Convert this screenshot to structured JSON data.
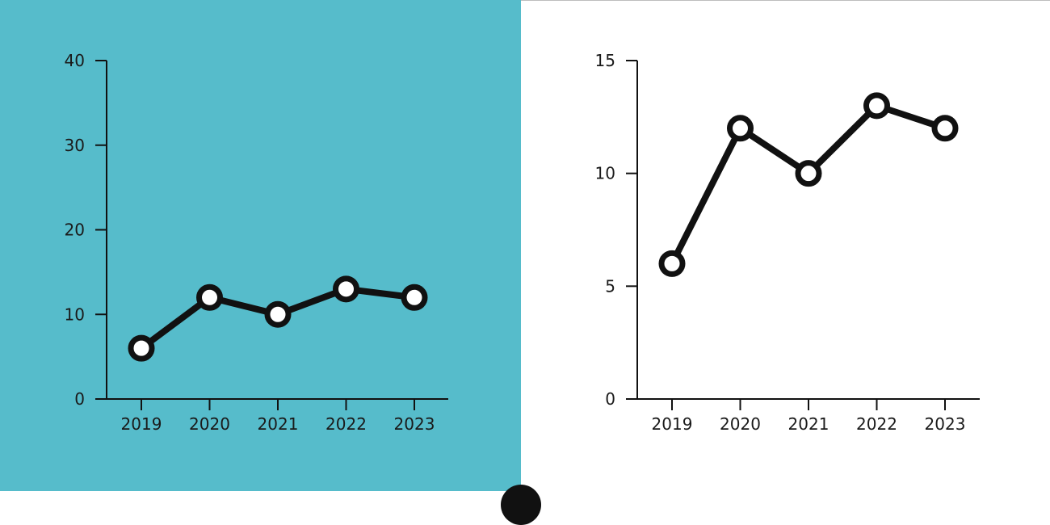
{
  "colors": {
    "left_background": "#56bccb",
    "right_background": "#ffffff",
    "line": "#111111",
    "marker_fill": "#ffffff"
  },
  "chart_data": [
    {
      "type": "line",
      "x": [
        "2019",
        "2020",
        "2021",
        "2022",
        "2023"
      ],
      "values": [
        6,
        12,
        10,
        13,
        12
      ],
      "ylim": [
        0,
        40
      ],
      "yticks": [
        0,
        10,
        20,
        30,
        40
      ],
      "title": "",
      "xlabel": "",
      "ylabel": "",
      "grid": false
    },
    {
      "type": "line",
      "x": [
        "2019",
        "2020",
        "2021",
        "2022",
        "2023"
      ],
      "values": [
        6,
        12,
        10,
        13,
        12
      ],
      "ylim": [
        0,
        15
      ],
      "yticks": [
        0,
        5,
        10,
        15
      ],
      "title": "",
      "xlabel": "",
      "ylabel": "",
      "grid": false
    }
  ]
}
